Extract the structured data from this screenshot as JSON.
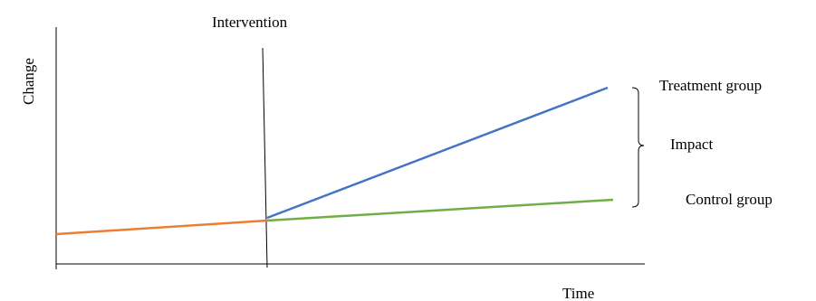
{
  "labels": {
    "intervention": "Intervention",
    "y_axis": "Change",
    "x_axis": "Time",
    "treatment_group": "Treatment group",
    "impact": "Impact",
    "control_group": "Control group"
  },
  "colors": {
    "pre_intervention": "#ED7D31",
    "treatment_group": "#4472C4",
    "control_group": "#70AD47",
    "axes": "#000000"
  }
}
